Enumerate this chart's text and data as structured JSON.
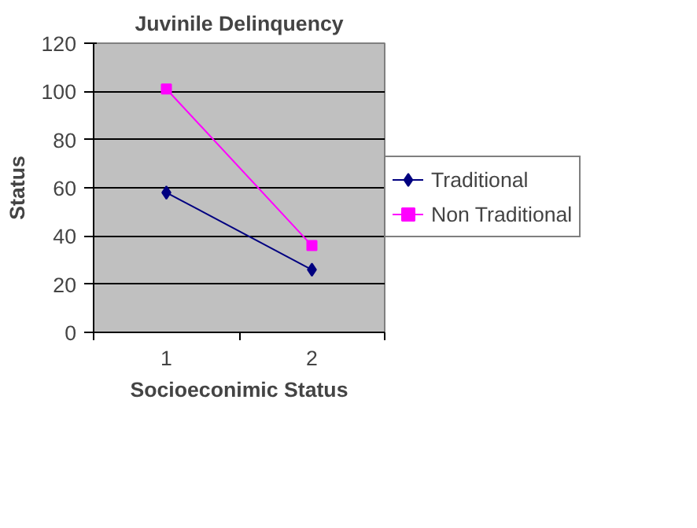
{
  "chart_data": {
    "type": "line",
    "title": "Juvinile Delinquency",
    "xlabel": "Socioeconimic Status",
    "ylabel": "Status",
    "categories": [
      "1",
      "2"
    ],
    "series": [
      {
        "name": "Traditional",
        "color": "#000080",
        "values": [
          58,
          26
        ],
        "marker": "diamond"
      },
      {
        "name": "Non Traditional",
        "color": "#ff00ff",
        "values": [
          101,
          36
        ],
        "marker": "square"
      }
    ],
    "ylim": [
      0,
      120
    ],
    "yticks": [
      0,
      20,
      40,
      60,
      80,
      100,
      120
    ],
    "grid": "y",
    "legend": "right"
  }
}
